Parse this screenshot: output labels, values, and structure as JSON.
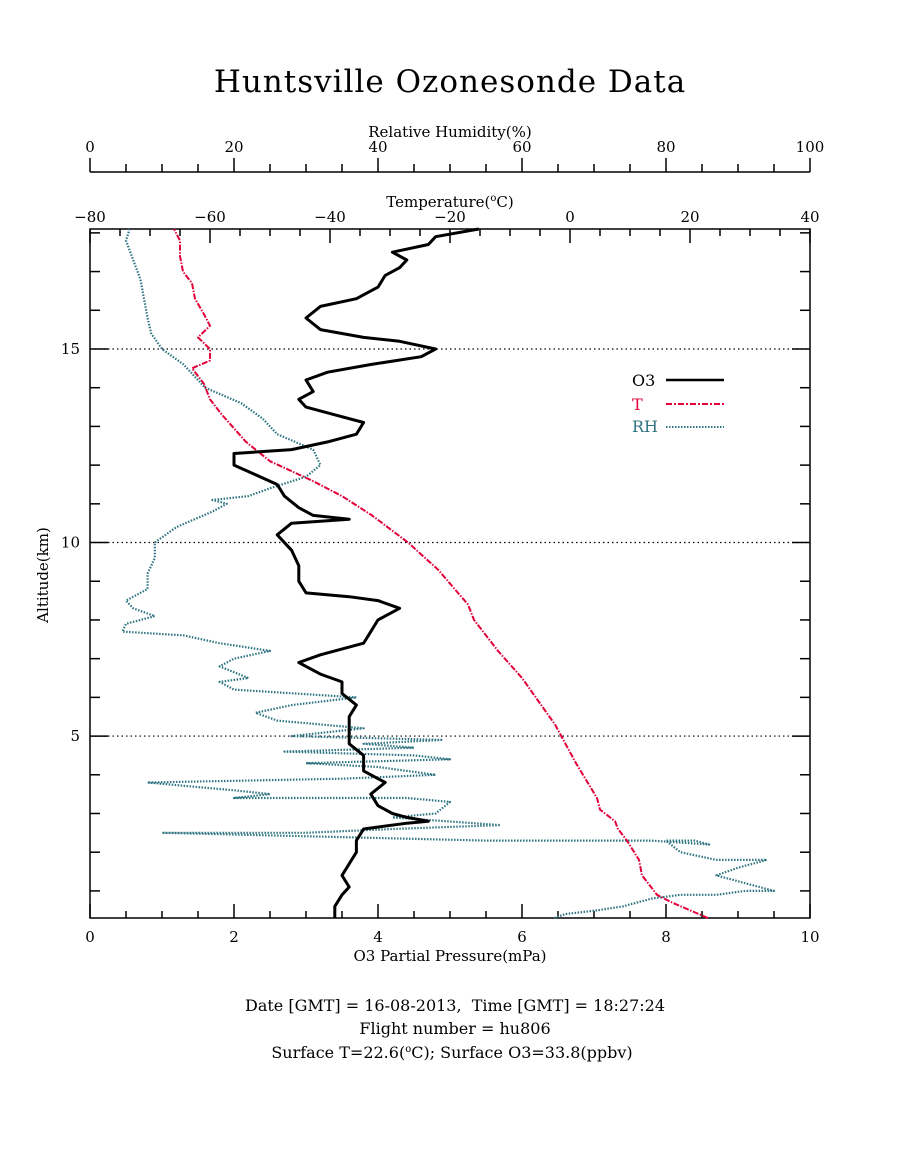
{
  "chart_data": {
    "type": "line",
    "title": "Huntsville Ozonesonde Data",
    "axes": {
      "rh": {
        "label": "Relative Humidity(%)",
        "range": [
          0,
          100
        ],
        "ticks": [
          0,
          20,
          40,
          60,
          80,
          100
        ]
      },
      "temp": {
        "label_main": "Temperature(",
        "label_sup": "o",
        "label_tail": "C)",
        "range": [
          -80,
          40
        ],
        "ticks": [
          -80,
          -60,
          -40,
          -20,
          0,
          20,
          40
        ]
      },
      "o3": {
        "label": "O3 Partial Pressure(mPa)",
        "range": [
          0,
          10
        ],
        "ticks": [
          0,
          2,
          4,
          6,
          8,
          10
        ]
      },
      "alt": {
        "label": "Altitude(km)",
        "range": [
          0.3,
          18.1
        ],
        "ticks": [
          5,
          10,
          15
        ]
      }
    },
    "reference_lines_km": [
      5,
      10,
      15
    ],
    "legend_position": "upper-right",
    "series": [
      {
        "name": "O3",
        "color": "#000000",
        "style": "solid",
        "axis": "o3",
        "points": [
          [
            3.4,
            0.3
          ],
          [
            3.4,
            0.6
          ],
          [
            3.5,
            0.9
          ],
          [
            3.6,
            1.1
          ],
          [
            3.5,
            1.4
          ],
          [
            3.6,
            1.7
          ],
          [
            3.7,
            2.0
          ],
          [
            3.7,
            2.3
          ],
          [
            3.8,
            2.6
          ],
          [
            4.4,
            2.75
          ],
          [
            4.7,
            2.8
          ],
          [
            4.4,
            2.9
          ],
          [
            4.2,
            3.0
          ],
          [
            4.0,
            3.2
          ],
          [
            3.9,
            3.5
          ],
          [
            4.1,
            3.8
          ],
          [
            3.8,
            4.1
          ],
          [
            3.8,
            4.5
          ],
          [
            3.6,
            4.8
          ],
          [
            3.6,
            5.2
          ],
          [
            3.6,
            5.5
          ],
          [
            3.7,
            5.8
          ],
          [
            3.5,
            6.1
          ],
          [
            3.5,
            6.4
          ],
          [
            3.2,
            6.6
          ],
          [
            3.0,
            6.8
          ],
          [
            2.9,
            6.9
          ],
          [
            3.2,
            7.1
          ],
          [
            3.4,
            7.2
          ],
          [
            3.8,
            7.4
          ],
          [
            3.9,
            7.7
          ],
          [
            4.0,
            8.0
          ],
          [
            4.3,
            8.3
          ],
          [
            4.0,
            8.5
          ],
          [
            3.6,
            8.6
          ],
          [
            3.0,
            8.7
          ],
          [
            2.9,
            9.0
          ],
          [
            2.9,
            9.4
          ],
          [
            2.8,
            9.8
          ],
          [
            2.6,
            10.2
          ],
          [
            2.8,
            10.5
          ],
          [
            3.6,
            10.6
          ],
          [
            3.1,
            10.7
          ],
          [
            2.9,
            10.9
          ],
          [
            2.7,
            11.2
          ],
          [
            2.6,
            11.5
          ],
          [
            2.0,
            12.0
          ],
          [
            2.0,
            12.3
          ],
          [
            2.8,
            12.4
          ],
          [
            3.3,
            12.6
          ],
          [
            3.7,
            12.8
          ],
          [
            3.8,
            13.1
          ],
          [
            3.4,
            13.3
          ],
          [
            3.0,
            13.5
          ],
          [
            2.9,
            13.7
          ],
          [
            3.1,
            13.9
          ],
          [
            3.0,
            14.2
          ],
          [
            3.3,
            14.4
          ],
          [
            3.9,
            14.6
          ],
          [
            4.6,
            14.8
          ],
          [
            4.8,
            15.0
          ],
          [
            4.3,
            15.2
          ],
          [
            3.8,
            15.3
          ],
          [
            3.2,
            15.5
          ],
          [
            3.0,
            15.8
          ],
          [
            3.2,
            16.1
          ],
          [
            3.7,
            16.3
          ],
          [
            4.0,
            16.6
          ],
          [
            4.1,
            16.9
          ],
          [
            4.3,
            17.1
          ],
          [
            4.4,
            17.3
          ],
          [
            4.2,
            17.5
          ],
          [
            4.7,
            17.7
          ],
          [
            4.8,
            17.9
          ],
          [
            5.4,
            18.1
          ]
        ]
      },
      {
        "name": "T",
        "color": "#e3003a",
        "style": "dash-dot",
        "axis": "temp",
        "points": [
          [
            23.0,
            0.3
          ],
          [
            20.0,
            0.5
          ],
          [
            17.0,
            0.7
          ],
          [
            14.5,
            0.9
          ],
          [
            13.5,
            1.1
          ],
          [
            12.0,
            1.4
          ],
          [
            11.5,
            1.8
          ],
          [
            9.5,
            2.3
          ],
          [
            8.0,
            2.6
          ],
          [
            7.5,
            2.8
          ],
          [
            5.0,
            3.1
          ],
          [
            4.5,
            3.4
          ],
          [
            1.0,
            4.3
          ],
          [
            -2.5,
            5.3
          ],
          [
            -8.0,
            6.5
          ],
          [
            -12.0,
            7.2
          ],
          [
            -16.0,
            8.0
          ],
          [
            -17.0,
            8.4
          ],
          [
            -22.0,
            9.3
          ],
          [
            -27.0,
            10.0
          ],
          [
            -33.0,
            10.7
          ],
          [
            -38.0,
            11.2
          ],
          [
            -43.0,
            11.6
          ],
          [
            -50.0,
            12.1
          ],
          [
            -54.0,
            12.6
          ],
          [
            -58.0,
            13.3
          ],
          [
            -60.0,
            13.7
          ],
          [
            -61.0,
            14.1
          ],
          [
            -63.0,
            14.5
          ],
          [
            -60.0,
            14.7
          ],
          [
            -60.0,
            15.0
          ],
          [
            -62.0,
            15.3
          ],
          [
            -60.0,
            15.6
          ],
          [
            -61.0,
            15.9
          ],
          [
            -62.5,
            16.3
          ],
          [
            -63.0,
            16.7
          ],
          [
            -64.5,
            17.0
          ],
          [
            -65.0,
            17.4
          ],
          [
            -65.0,
            17.8
          ],
          [
            -66.0,
            18.1
          ]
        ]
      },
      {
        "name": "RH",
        "color": "#2e7480",
        "style": "dotted",
        "axis": "rh",
        "points": [
          [
            64.5,
            0.3
          ],
          [
            66.0,
            0.4
          ],
          [
            70.5,
            0.5
          ],
          [
            74.0,
            0.6
          ],
          [
            78.0,
            0.8
          ],
          [
            82.0,
            0.9
          ],
          [
            87.0,
            0.9
          ],
          [
            91.0,
            1.0
          ],
          [
            95.0,
            1.0
          ],
          [
            91.0,
            1.2
          ],
          [
            87.0,
            1.4
          ],
          [
            90.0,
            1.6
          ],
          [
            94.0,
            1.8
          ],
          [
            87.0,
            1.8
          ],
          [
            82.0,
            2.0
          ],
          [
            80.0,
            2.3
          ],
          [
            84.0,
            2.3
          ],
          [
            86.0,
            2.2
          ],
          [
            78.0,
            2.3
          ],
          [
            72.0,
            2.3
          ],
          [
            55.0,
            2.3
          ],
          [
            10.0,
            2.5
          ],
          [
            30.0,
            2.5
          ],
          [
            42.0,
            2.6
          ],
          [
            57.0,
            2.7
          ],
          [
            42.0,
            2.9
          ],
          [
            48.0,
            3.0
          ],
          [
            50.0,
            3.3
          ],
          [
            44.0,
            3.4
          ],
          [
            20.0,
            3.4
          ],
          [
            25.0,
            3.5
          ],
          [
            20.0,
            3.6
          ],
          [
            8.0,
            3.8
          ],
          [
            35.0,
            3.9
          ],
          [
            48.0,
            4.0
          ],
          [
            40.0,
            4.2
          ],
          [
            30.0,
            4.3
          ],
          [
            50.0,
            4.4
          ],
          [
            45.0,
            4.5
          ],
          [
            27.0,
            4.6
          ],
          [
            45.0,
            4.7
          ],
          [
            38.0,
            4.8
          ],
          [
            49.0,
            4.9
          ],
          [
            28.0,
            5.0
          ],
          [
            38.0,
            5.2
          ],
          [
            26.0,
            5.4
          ],
          [
            23.0,
            5.6
          ],
          [
            28.0,
            5.8
          ],
          [
            37.0,
            6.0
          ],
          [
            20.0,
            6.2
          ],
          [
            18.0,
            6.4
          ],
          [
            22.0,
            6.5
          ],
          [
            18.0,
            6.8
          ],
          [
            20.0,
            7.0
          ],
          [
            25.0,
            7.2
          ],
          [
            18.0,
            7.4
          ],
          [
            13.0,
            7.6
          ],
          [
            4.5,
            7.7
          ],
          [
            5.0,
            7.9
          ],
          [
            9.0,
            8.1
          ],
          [
            6.0,
            8.3
          ],
          [
            5.0,
            8.5
          ],
          [
            8.0,
            8.8
          ],
          [
            8.0,
            9.2
          ],
          [
            9.0,
            9.6
          ],
          [
            9.0,
            10.0
          ],
          [
            12.0,
            10.4
          ],
          [
            17.0,
            10.8
          ],
          [
            19.0,
            11.0
          ],
          [
            17.0,
            11.1
          ],
          [
            22.0,
            11.2
          ],
          [
            25.0,
            11.4
          ],
          [
            30.0,
            11.7
          ],
          [
            32.0,
            12.0
          ],
          [
            31.0,
            12.4
          ],
          [
            26.0,
            12.8
          ],
          [
            24.0,
            13.2
          ],
          [
            21.0,
            13.6
          ],
          [
            16.0,
            14.0
          ],
          [
            15.0,
            14.2
          ],
          [
            13.0,
            14.6
          ],
          [
            10.0,
            15.0
          ],
          [
            8.5,
            15.4
          ],
          [
            8.0,
            15.8
          ],
          [
            7.5,
            16.3
          ],
          [
            7.0,
            16.8
          ],
          [
            6.0,
            17.3
          ],
          [
            5.0,
            17.8
          ],
          [
            5.5,
            18.1
          ]
        ]
      }
    ]
  },
  "footer": {
    "line1": "Date [GMT] = 16-08-2013,  Time [GMT] = 18:27:24",
    "line2": "Flight number = hu806",
    "line3_a": "Surface T=22.6(",
    "line3_sup": "o",
    "line3_b": "C); Surface O3=33.8(ppbv)"
  }
}
